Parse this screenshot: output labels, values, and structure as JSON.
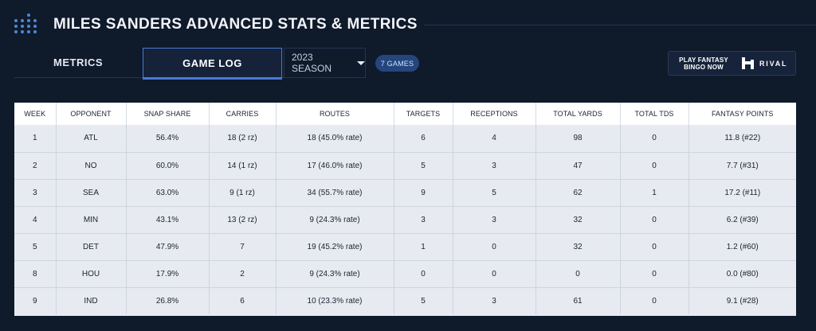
{
  "header": {
    "title": "MILES SANDERS ADVANCED STATS & METRICS",
    "logo_icon": "dot-grid-logo-icon"
  },
  "nav": {
    "tabs": [
      {
        "label": "METRICS",
        "active": false
      },
      {
        "label": "GAME LOG",
        "active": true
      }
    ],
    "season": {
      "value": "2023 SEASON",
      "icon": "caret-down-icon"
    },
    "games_badge": "7 GAMES",
    "promo": {
      "line1": "PLAY FANTASY",
      "line2": "BINGO NOW",
      "brand": "RIVAL",
      "icon": "rival-logo-icon"
    }
  },
  "colors": {
    "background": "#0f1a2b",
    "accent": "#4a7ad6",
    "badge": "#25467d",
    "table_header": "#ffffff",
    "table_row": "#e7ebf1"
  },
  "table": {
    "columns": [
      "WEEK",
      "OPPONENT",
      "SNAP SHARE",
      "CARRIES",
      "ROUTES",
      "TARGETS",
      "RECEPTIONS",
      "TOTAL YARDS",
      "TOTAL TDS",
      "FANTASY POINTS"
    ],
    "rows": [
      [
        "1",
        "ATL",
        "56.4%",
        "18 (2 rz)",
        "18 (45.0% rate)",
        "6",
        "4",
        "98",
        "0",
        "11.8 (#22)"
      ],
      [
        "2",
        "NO",
        "60.0%",
        "14 (1 rz)",
        "17 (46.0% rate)",
        "5",
        "3",
        "47",
        "0",
        "7.7 (#31)"
      ],
      [
        "3",
        "SEA",
        "63.0%",
        "9 (1 rz)",
        "34 (55.7% rate)",
        "9",
        "5",
        "62",
        "1",
        "17.2 (#11)"
      ],
      [
        "4",
        "MIN",
        "43.1%",
        "13 (2 rz)",
        "9 (24.3% rate)",
        "3",
        "3",
        "32",
        "0",
        "6.2 (#39)"
      ],
      [
        "5",
        "DET",
        "47.9%",
        "7",
        "19 (45.2% rate)",
        "1",
        "0",
        "32",
        "0",
        "1.2 (#60)"
      ],
      [
        "8",
        "HOU",
        "17.9%",
        "2",
        "9 (24.3% rate)",
        "0",
        "0",
        "0",
        "0",
        "0.0 (#80)"
      ],
      [
        "9",
        "IND",
        "26.8%",
        "6",
        "10 (23.3% rate)",
        "5",
        "3",
        "61",
        "0",
        "9.1 (#28)"
      ]
    ]
  }
}
